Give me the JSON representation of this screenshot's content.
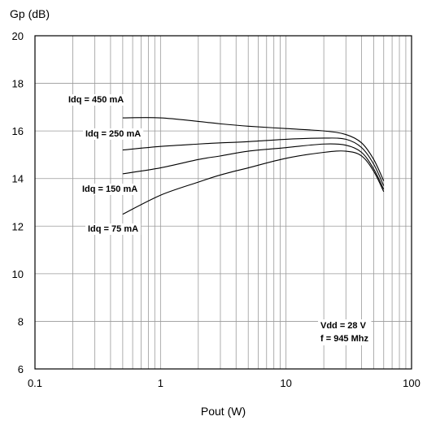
{
  "chart_data": {
    "type": "line",
    "title": "",
    "xlabel": "Pout (W)",
    "ylabel": "Gp (dB)",
    "x_scale": "log",
    "xlim": [
      0.1,
      100
    ],
    "ylim": [
      6,
      20
    ],
    "x_ticks": [
      "0.1",
      "1",
      "10",
      "100"
    ],
    "y_ticks": [
      "6",
      "8",
      "10",
      "12",
      "14",
      "16",
      "18",
      "20"
    ],
    "grid": true,
    "notes": [
      "Vdd = 28 V",
      "f = 945 Mhz"
    ],
    "series": [
      {
        "name": "Idq = 450 mA",
        "x": [
          0.5,
          1,
          2,
          3,
          5,
          10,
          20,
          30,
          40,
          50,
          60
        ],
        "y": [
          16.55,
          16.55,
          16.4,
          16.3,
          16.2,
          16.1,
          16.0,
          15.85,
          15.5,
          14.8,
          13.9
        ]
      },
      {
        "name": "Idq = 250 mA",
        "x": [
          0.5,
          1,
          2,
          3,
          5,
          10,
          20,
          30,
          40,
          50,
          60
        ],
        "y": [
          15.2,
          15.35,
          15.45,
          15.5,
          15.55,
          15.65,
          15.7,
          15.65,
          15.3,
          14.6,
          13.7
        ]
      },
      {
        "name": "Idq = 150 mA",
        "x": [
          0.5,
          1,
          2,
          3,
          5,
          10,
          20,
          30,
          40,
          50,
          60
        ],
        "y": [
          14.2,
          14.45,
          14.8,
          14.95,
          15.15,
          15.3,
          15.45,
          15.4,
          15.1,
          14.4,
          13.55
        ]
      },
      {
        "name": "Idq = 75 mA",
        "x": [
          0.5,
          1,
          2,
          3,
          5,
          10,
          20,
          30,
          40,
          50,
          60
        ],
        "y": [
          12.5,
          13.3,
          13.85,
          14.15,
          14.45,
          14.85,
          15.1,
          15.15,
          14.95,
          14.3,
          13.45
        ]
      }
    ]
  }
}
